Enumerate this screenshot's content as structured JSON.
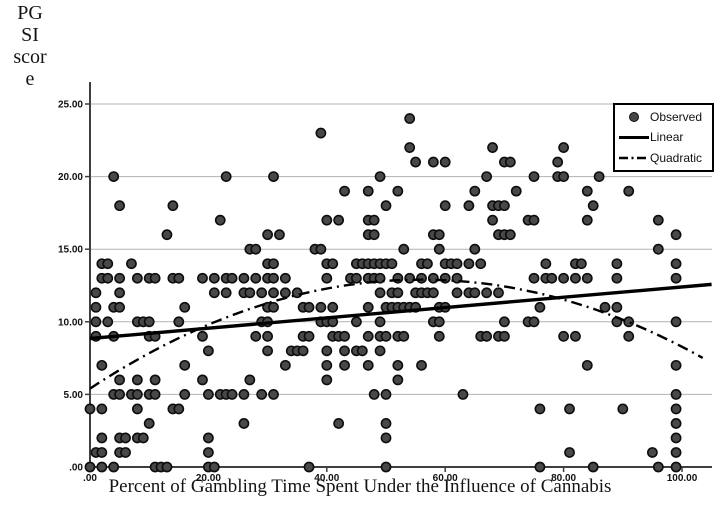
{
  "figure": {
    "y_axis_label_lines": [
      "PG",
      "SI",
      "scor",
      "e"
    ],
    "x_axis_label": "Percent of Gambling Time Spent Under the Influence of Cannabis",
    "legend": {
      "items": [
        {
          "label": "Observed",
          "marker": "filled-circle"
        },
        {
          "label": "Linear",
          "marker": "solid-line"
        },
        {
          "label": "Quadratic",
          "marker": "dash-dot-line"
        }
      ]
    }
  },
  "chart_data": {
    "type": "scatter",
    "title": "",
    "xlabel": "Percent of Gambling Time Spent Under the Influence of Cannabis",
    "ylabel": "PGSI score",
    "xlim": [
      0,
      105
    ],
    "ylim": [
      0,
      25
    ],
    "x_ticks": [
      0,
      20,
      40,
      60,
      80,
      100
    ],
    "x_tick_labels": [
      ".00",
      "20.00",
      "40.00",
      "60.00",
      "80.00",
      "100.00"
    ],
    "y_ticks": [
      0,
      5,
      10,
      15,
      20,
      25
    ],
    "y_tick_labels": [
      ".00",
      "5.00",
      "10.00",
      "15.00",
      "20.00",
      "25.00"
    ],
    "grid": "horizontal",
    "legend_position": "top-right",
    "colors": {
      "points": "#484848",
      "point_edge": "#0d0d0d",
      "lines": "#000000",
      "grid": "#b3b3b3",
      "axis": "#3f3f3f",
      "tick_text": "#111111"
    },
    "series": [
      {
        "name": "Observed",
        "type": "scatter",
        "points": [
          [
            0,
            0
          ],
          [
            2,
            0
          ],
          [
            4,
            0
          ],
          [
            11,
            0
          ],
          [
            12,
            0
          ],
          [
            13,
            0
          ],
          [
            20,
            0
          ],
          [
            21,
            0
          ],
          [
            37,
            0
          ],
          [
            50,
            0
          ],
          [
            76,
            0
          ],
          [
            85,
            0
          ],
          [
            96,
            0
          ],
          [
            99,
            0
          ],
          [
            1,
            1
          ],
          [
            2,
            1
          ],
          [
            5,
            1
          ],
          [
            6,
            1
          ],
          [
            20,
            1
          ],
          [
            81,
            1
          ],
          [
            95,
            1
          ],
          [
            99,
            1
          ],
          [
            2,
            2
          ],
          [
            5,
            2
          ],
          [
            6,
            2
          ],
          [
            8,
            2
          ],
          [
            9,
            2
          ],
          [
            20,
            2
          ],
          [
            50,
            2
          ],
          [
            99,
            2
          ],
          [
            10,
            3
          ],
          [
            26,
            3
          ],
          [
            42,
            3
          ],
          [
            50,
            3
          ],
          [
            99,
            3
          ],
          [
            0,
            4
          ],
          [
            2,
            4
          ],
          [
            8,
            4
          ],
          [
            14,
            4
          ],
          [
            15,
            4
          ],
          [
            76,
            4
          ],
          [
            81,
            4
          ],
          [
            90,
            4
          ],
          [
            99,
            4
          ],
          [
            4,
            5
          ],
          [
            5,
            5
          ],
          [
            7,
            5
          ],
          [
            8,
            5
          ],
          [
            10,
            5
          ],
          [
            11,
            5
          ],
          [
            16,
            5
          ],
          [
            20,
            5
          ],
          [
            22,
            5
          ],
          [
            23,
            5
          ],
          [
            24,
            5
          ],
          [
            26,
            5
          ],
          [
            29,
            5
          ],
          [
            31,
            5
          ],
          [
            48,
            5
          ],
          [
            50,
            5
          ],
          [
            63,
            5
          ],
          [
            99,
            5
          ],
          [
            5,
            6
          ],
          [
            8,
            6
          ],
          [
            11,
            6
          ],
          [
            19,
            6
          ],
          [
            27,
            6
          ],
          [
            40,
            6
          ],
          [
            52,
            6
          ],
          [
            2,
            7
          ],
          [
            16,
            7
          ],
          [
            33,
            7
          ],
          [
            40,
            7
          ],
          [
            43,
            7
          ],
          [
            47,
            7
          ],
          [
            52,
            7
          ],
          [
            56,
            7
          ],
          [
            84,
            7
          ],
          [
            99,
            7
          ],
          [
            20,
            8
          ],
          [
            30,
            8
          ],
          [
            34,
            8
          ],
          [
            35,
            8
          ],
          [
            36,
            8
          ],
          [
            40,
            8
          ],
          [
            43,
            8
          ],
          [
            45,
            8
          ],
          [
            46,
            8
          ],
          [
            49,
            8
          ],
          [
            1,
            9
          ],
          [
            4,
            9
          ],
          [
            10,
            9
          ],
          [
            11,
            9
          ],
          [
            19,
            9
          ],
          [
            28,
            9
          ],
          [
            30,
            9
          ],
          [
            36,
            9
          ],
          [
            37,
            9
          ],
          [
            41,
            9
          ],
          [
            42,
            9
          ],
          [
            43,
            9
          ],
          [
            47,
            9
          ],
          [
            49,
            9
          ],
          [
            50,
            9
          ],
          [
            52,
            9
          ],
          [
            53,
            9
          ],
          [
            59,
            9
          ],
          [
            66,
            9
          ],
          [
            67,
            9
          ],
          [
            69,
            9
          ],
          [
            70,
            9
          ],
          [
            80,
            9
          ],
          [
            82,
            9
          ],
          [
            91,
            9
          ],
          [
            1,
            10
          ],
          [
            3,
            10
          ],
          [
            8,
            10
          ],
          [
            9,
            10
          ],
          [
            10,
            10
          ],
          [
            15,
            10
          ],
          [
            29,
            10
          ],
          [
            30,
            10
          ],
          [
            39,
            10
          ],
          [
            40,
            10
          ],
          [
            41,
            10
          ],
          [
            45,
            10
          ],
          [
            49,
            10
          ],
          [
            58,
            10
          ],
          [
            59,
            10
          ],
          [
            70,
            10
          ],
          [
            74,
            10
          ],
          [
            75,
            10
          ],
          [
            89,
            10
          ],
          [
            91,
            10
          ],
          [
            99,
            10
          ],
          [
            1,
            11
          ],
          [
            4,
            11
          ],
          [
            5,
            11
          ],
          [
            16,
            11
          ],
          [
            30,
            11
          ],
          [
            31,
            11
          ],
          [
            36,
            11
          ],
          [
            37,
            11
          ],
          [
            39,
            11
          ],
          [
            41,
            11
          ],
          [
            47,
            11
          ],
          [
            50,
            11
          ],
          [
            51,
            11
          ],
          [
            52,
            11
          ],
          [
            53,
            11
          ],
          [
            54,
            11
          ],
          [
            55,
            11
          ],
          [
            59,
            11
          ],
          [
            60,
            11
          ],
          [
            76,
            11
          ],
          [
            87,
            11
          ],
          [
            89,
            11
          ],
          [
            1,
            12
          ],
          [
            5,
            12
          ],
          [
            21,
            12
          ],
          [
            23,
            12
          ],
          [
            26,
            12
          ],
          [
            27,
            12
          ],
          [
            29,
            12
          ],
          [
            31,
            12
          ],
          [
            33,
            12
          ],
          [
            35,
            12
          ],
          [
            49,
            12
          ],
          [
            51,
            12
          ],
          [
            52,
            12
          ],
          [
            55,
            12
          ],
          [
            56,
            12
          ],
          [
            57,
            12
          ],
          [
            58,
            12
          ],
          [
            62,
            12
          ],
          [
            64,
            12
          ],
          [
            65,
            12
          ],
          [
            67,
            12
          ],
          [
            69,
            12
          ],
          [
            2,
            13
          ],
          [
            3,
            13
          ],
          [
            5,
            13
          ],
          [
            8,
            13
          ],
          [
            10,
            13
          ],
          [
            11,
            13
          ],
          [
            14,
            13
          ],
          [
            15,
            13
          ],
          [
            19,
            13
          ],
          [
            21,
            13
          ],
          [
            23,
            13
          ],
          [
            24,
            13
          ],
          [
            26,
            13
          ],
          [
            28,
            13
          ],
          [
            30,
            13
          ],
          [
            31,
            13
          ],
          [
            33,
            13
          ],
          [
            40,
            13
          ],
          [
            44,
            13
          ],
          [
            45,
            13
          ],
          [
            47,
            13
          ],
          [
            48,
            13
          ],
          [
            49,
            13
          ],
          [
            52,
            13
          ],
          [
            54,
            13
          ],
          [
            56,
            13
          ],
          [
            58,
            13
          ],
          [
            60,
            13
          ],
          [
            62,
            13
          ],
          [
            75,
            13
          ],
          [
            77,
            13
          ],
          [
            78,
            13
          ],
          [
            80,
            13
          ],
          [
            82,
            13
          ],
          [
            84,
            13
          ],
          [
            89,
            13
          ],
          [
            99,
            13
          ],
          [
            2,
            14
          ],
          [
            3,
            14
          ],
          [
            7,
            14
          ],
          [
            30,
            14
          ],
          [
            31,
            14
          ],
          [
            40,
            14
          ],
          [
            41,
            14
          ],
          [
            45,
            14
          ],
          [
            46,
            14
          ],
          [
            47,
            14
          ],
          [
            48,
            14
          ],
          [
            49,
            14
          ],
          [
            50,
            14
          ],
          [
            51,
            14
          ],
          [
            56,
            14
          ],
          [
            57,
            14
          ],
          [
            60,
            14
          ],
          [
            61,
            14
          ],
          [
            62,
            14
          ],
          [
            64,
            14
          ],
          [
            66,
            14
          ],
          [
            77,
            14
          ],
          [
            82,
            14
          ],
          [
            83,
            14
          ],
          [
            89,
            14
          ],
          [
            99,
            14
          ],
          [
            27,
            15
          ],
          [
            28,
            15
          ],
          [
            38,
            15
          ],
          [
            39,
            15
          ],
          [
            53,
            15
          ],
          [
            59,
            15
          ],
          [
            65,
            15
          ],
          [
            96,
            15
          ],
          [
            13,
            16
          ],
          [
            30,
            16
          ],
          [
            32,
            16
          ],
          [
            47,
            16
          ],
          [
            48,
            16
          ],
          [
            58,
            16
          ],
          [
            59,
            16
          ],
          [
            69,
            16
          ],
          [
            70,
            16
          ],
          [
            71,
            16
          ],
          [
            99,
            16
          ],
          [
            22,
            17
          ],
          [
            40,
            17
          ],
          [
            42,
            17
          ],
          [
            47,
            17
          ],
          [
            48,
            17
          ],
          [
            68,
            17
          ],
          [
            74,
            17
          ],
          [
            75,
            17
          ],
          [
            84,
            17
          ],
          [
            96,
            17
          ],
          [
            5,
            18
          ],
          [
            14,
            18
          ],
          [
            50,
            18
          ],
          [
            60,
            18
          ],
          [
            64,
            18
          ],
          [
            68,
            18
          ],
          [
            69,
            18
          ],
          [
            70,
            18
          ],
          [
            85,
            18
          ],
          [
            43,
            19
          ],
          [
            47,
            19
          ],
          [
            52,
            19
          ],
          [
            65,
            19
          ],
          [
            72,
            19
          ],
          [
            84,
            19
          ],
          [
            91,
            19
          ],
          [
            4,
            20
          ],
          [
            23,
            20
          ],
          [
            31,
            20
          ],
          [
            49,
            20
          ],
          [
            67,
            20
          ],
          [
            75,
            20
          ],
          [
            79,
            20
          ],
          [
            80,
            20
          ],
          [
            86,
            20
          ],
          [
            55,
            21
          ],
          [
            58,
            21
          ],
          [
            60,
            21
          ],
          [
            70,
            21
          ],
          [
            71,
            21
          ],
          [
            79,
            21
          ],
          [
            54,
            22
          ],
          [
            68,
            22
          ],
          [
            80,
            22
          ],
          [
            39,
            23
          ],
          [
            54,
            24
          ]
        ]
      },
      {
        "name": "Linear",
        "type": "line",
        "style": "solid",
        "fit": {
          "intercept": 8.85,
          "slope": 0.0355
        },
        "x_range": [
          0,
          105
        ]
      },
      {
        "name": "Quadratic",
        "type": "line",
        "style": "dash-dot",
        "fit": {
          "a": 5.4,
          "b": 0.2678,
          "c": -0.00239
        },
        "x_range": [
          0,
          104.5
        ]
      }
    ]
  }
}
